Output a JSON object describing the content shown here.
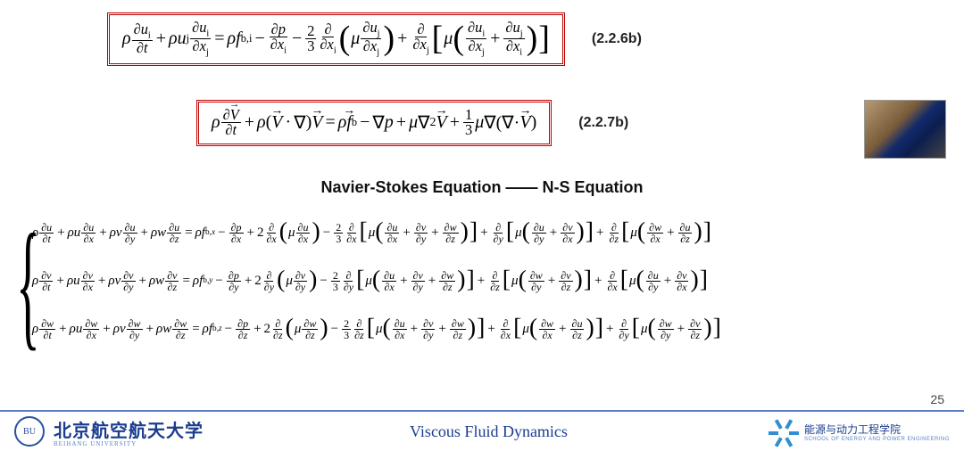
{
  "eq1_label": "(2.2.6b)",
  "eq2_label": "(2.2.7b)",
  "section_title": "Navier-Stokes Equation —— N-S Equation",
  "page_number": "25",
  "colors": {
    "box_border": "#c00000",
    "footer_rule": "#5b7fc7",
    "brand_text": "#1a3c8f"
  },
  "footer": {
    "uni_cn": "北京航空航天大学",
    "uni_en": "BEIHANG UNIVERSITY",
    "course": "Viscous Fluid Dynamics",
    "school_cn": "能源与动力工程学院",
    "school_en": "SCHOOL OF ENERGY AND POWER ENGINEERING"
  },
  "equations": {
    "eq1": "ρ ∂u_i/∂t + ρ u_j ∂u_i/∂x_j = ρ f_{b,i} − ∂p/∂x_i − (2/3) ∂/∂x_i ( μ ∂u_j/∂x_j ) + ∂/∂x_j [ μ ( ∂u_i/∂x_j + ∂u_j/∂x_i ) ]",
    "eq2": "ρ ∂V⃗/∂t + ρ (V⃗·∇)V⃗ = ρ f⃗_b − ∇p + μ ∇²V⃗ + (1/3) μ ∇(∇·V⃗)",
    "system": {
      "u": "ρ ∂u/∂t + ρu ∂u/∂x + ρv ∂u/∂y + ρw ∂u/∂z = ρ f_{b,x} − ∂p/∂x + 2 ∂/∂x(μ ∂u/∂x) − (2/3) ∂/∂x[ μ(∂u/∂x+∂v/∂y+∂w/∂z) ] + ∂/∂y[ μ(∂u/∂y+∂v/∂x) ] + ∂/∂z[ μ(∂w/∂x+∂u/∂z) ]",
      "v": "ρ ∂v/∂t + ρu ∂v/∂x + ρv ∂v/∂y + ρw ∂v/∂z = ρ f_{b,y} − ∂p/∂y + 2 ∂/∂y(μ ∂v/∂y) − (2/3) ∂/∂y[ μ(∂u/∂x+∂v/∂y+∂w/∂z) ] + ∂/∂z[ μ(∂w/∂y+∂v/∂z) ] + ∂/∂x[ μ(∂u/∂y+∂v/∂x) ]",
      "w": "ρ ∂w/∂t + ρu ∂w/∂x + ρv ∂w/∂y + ρw ∂w/∂z = ρ f_{b,z} − ∂p/∂z + 2 ∂/∂z(μ ∂w/∂z) − (2/3) ∂/∂z[ μ(∂u/∂x+∂v/∂y+∂w/∂z) ] + ∂/∂x[ μ(∂w/∂x+∂u/∂z) ] + ∂/∂y[ μ(∂w/∂y+∂v/∂z) ]"
    }
  }
}
